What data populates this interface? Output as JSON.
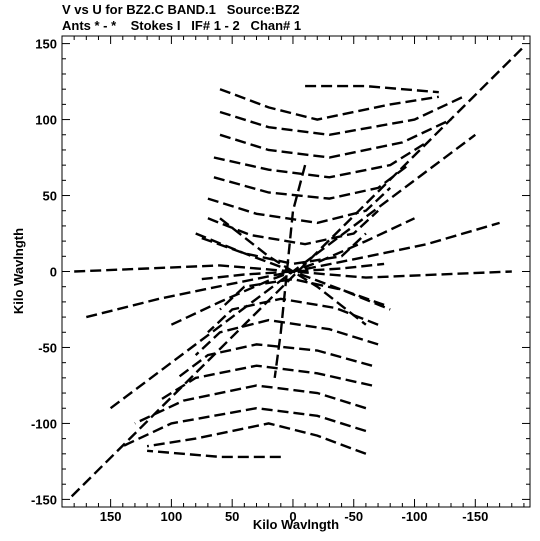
{
  "chart_data": {
    "type": "scatter",
    "title": "V vs U for BZ2.C BAND.1   Source:BZ2",
    "subtitle": "Ants * - *    Stokes I   IF# 1 - 2   Chan# 1",
    "xlabel": "Kilo Wavlngth",
    "ylabel": "Kilo Wavlngth",
    "xlim": [
      190,
      -195
    ],
    "ylim": [
      -155,
      155
    ],
    "x_axis_reversed": true,
    "x_ticks": [
      150,
      100,
      50,
      0,
      -50,
      -100,
      -150
    ],
    "x_tick_labels": [
      "150",
      "100",
      "50",
      "0",
      "-50",
      "-100",
      "-150"
    ],
    "y_ticks": [
      -150,
      -100,
      -50,
      0,
      50,
      100,
      150
    ],
    "y_tick_labels": [
      "-150",
      "-100",
      "-50",
      "0",
      "50",
      "100",
      "150"
    ],
    "grid": false,
    "mark_style": "dashed black tracks (u,v coverage)",
    "color": "#000000",
    "series": [
      {
        "points": [
          [
            182,
            -148
          ],
          [
            -190,
            148
          ]
        ]
      },
      {
        "points": [
          [
            150,
            -90
          ],
          [
            -150,
            90
          ]
        ]
      },
      {
        "points": [
          [
            60,
            120
          ],
          [
            20,
            108
          ],
          [
            -20,
            100
          ],
          [
            -80,
            110
          ],
          [
            -120,
            115
          ]
        ]
      },
      {
        "points": [
          [
            -10,
            122
          ],
          [
            -60,
            122
          ],
          [
            -120,
            118
          ]
        ]
      },
      {
        "points": [
          [
            60,
            105
          ],
          [
            20,
            95
          ],
          [
            -30,
            90
          ],
          [
            -100,
            100
          ],
          [
            -140,
            115
          ]
        ]
      },
      {
        "points": [
          [
            60,
            90
          ],
          [
            20,
            80
          ],
          [
            -30,
            75
          ],
          [
            -90,
            85
          ],
          [
            -130,
            100
          ]
        ]
      },
      {
        "points": [
          [
            65,
            75
          ],
          [
            20,
            67
          ],
          [
            -30,
            62
          ],
          [
            -80,
            70
          ],
          [
            -110,
            85
          ]
        ]
      },
      {
        "points": [
          [
            65,
            62
          ],
          [
            20,
            52
          ],
          [
            -30,
            48
          ],
          [
            -70,
            55
          ],
          [
            -95,
            70
          ]
        ]
      },
      {
        "points": [
          [
            70,
            48
          ],
          [
            30,
            38
          ],
          [
            -20,
            32
          ],
          [
            -60,
            40
          ],
          [
            -80,
            55
          ]
        ]
      },
      {
        "points": [
          [
            70,
            35
          ],
          [
            35,
            24
          ],
          [
            -10,
            18
          ],
          [
            -50,
            25
          ],
          [
            -70,
            40
          ]
        ]
      },
      {
        "points": [
          [
            75,
            22
          ],
          [
            40,
            12
          ],
          [
            0,
            5
          ],
          [
            -40,
            10
          ],
          [
            -60,
            25
          ]
        ]
      },
      {
        "points": [
          [
            -60,
            -120
          ],
          [
            -20,
            -108
          ],
          [
            20,
            -100
          ],
          [
            80,
            -110
          ],
          [
            120,
            -115
          ]
        ]
      },
      {
        "points": [
          [
            10,
            -122
          ],
          [
            60,
            -122
          ],
          [
            120,
            -118
          ]
        ]
      },
      {
        "points": [
          [
            -60,
            -105
          ],
          [
            -20,
            -95
          ],
          [
            30,
            -90
          ],
          [
            100,
            -100
          ],
          [
            140,
            -115
          ]
        ]
      },
      {
        "points": [
          [
            -60,
            -90
          ],
          [
            -20,
            -80
          ],
          [
            30,
            -75
          ],
          [
            90,
            -85
          ],
          [
            130,
            -100
          ]
        ]
      },
      {
        "points": [
          [
            -65,
            -75
          ],
          [
            -20,
            -67
          ],
          [
            30,
            -62
          ],
          [
            80,
            -70
          ],
          [
            110,
            -85
          ]
        ]
      },
      {
        "points": [
          [
            -65,
            -62
          ],
          [
            -20,
            -52
          ],
          [
            30,
            -48
          ],
          [
            70,
            -55
          ],
          [
            95,
            -70
          ]
        ]
      },
      {
        "points": [
          [
            -70,
            -48
          ],
          [
            -30,
            -38
          ],
          [
            20,
            -32
          ],
          [
            60,
            -40
          ],
          [
            80,
            -55
          ]
        ]
      },
      {
        "points": [
          [
            -70,
            -35
          ],
          [
            -35,
            -24
          ],
          [
            10,
            -18
          ],
          [
            50,
            -25
          ],
          [
            70,
            -40
          ]
        ]
      },
      {
        "points": [
          [
            -75,
            -22
          ],
          [
            -40,
            -12
          ],
          [
            0,
            -5
          ],
          [
            40,
            -10
          ],
          [
            60,
            -25
          ]
        ]
      },
      {
        "points": [
          [
            180,
            0
          ],
          [
            120,
            2
          ],
          [
            60,
            4
          ],
          [
            0,
            0
          ],
          [
            -60,
            -4
          ],
          [
            -120,
            -2
          ],
          [
            -180,
            0
          ]
        ]
      },
      {
        "points": [
          [
            170,
            -30
          ],
          [
            110,
            -18
          ],
          [
            50,
            -8
          ],
          [
            0,
            0
          ],
          [
            -50,
            8
          ],
          [
            -110,
            18
          ],
          [
            -170,
            32
          ]
        ]
      },
      {
        "points": [
          [
            100,
            -35
          ],
          [
            60,
            -20
          ],
          [
            20,
            -6
          ],
          [
            -20,
            6
          ],
          [
            -60,
            20
          ],
          [
            -100,
            35
          ]
        ]
      },
      {
        "points": [
          [
            80,
            25
          ],
          [
            40,
            12
          ],
          [
            0,
            0
          ],
          [
            -40,
            -12
          ],
          [
            -80,
            -25
          ]
        ]
      },
      {
        "points": [
          [
            60,
            35
          ],
          [
            20,
            10
          ],
          [
            -20,
            -10
          ],
          [
            -60,
            -35
          ]
        ]
      },
      {
        "points": [
          [
            -10,
            70
          ],
          [
            0,
            40
          ],
          [
            5,
            0
          ],
          [
            10,
            -40
          ],
          [
            15,
            -70
          ]
        ]
      },
      {
        "points": [
          [
            75,
            -5
          ],
          [
            40,
            -2
          ],
          [
            0,
            0
          ],
          [
            -40,
            2
          ],
          [
            -75,
            5
          ]
        ]
      }
    ]
  }
}
